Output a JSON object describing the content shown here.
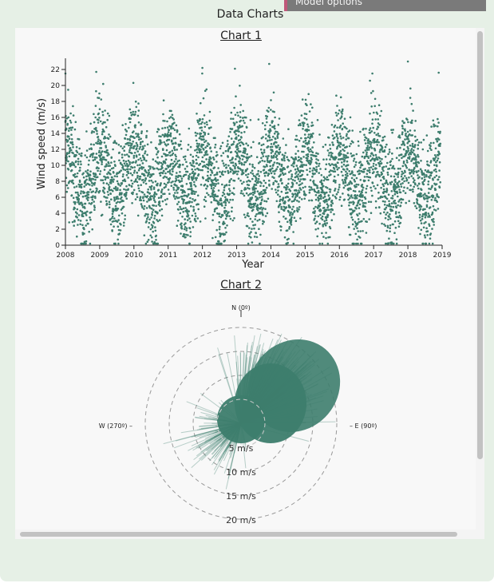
{
  "window": {
    "title": "Data Charts",
    "tab_label": "Model options"
  },
  "colors": {
    "point": "#3d7d6d",
    "panel": "#e6f0e6",
    "content": "#f8f8f8"
  },
  "chart_data": [
    {
      "type": "scatter",
      "title": "Chart 1",
      "xlabel": "Year",
      "ylabel": "Wind speed (m/s)",
      "xlim": [
        2008,
        2019
      ],
      "ylim": [
        0,
        23
      ],
      "x_ticks": [
        "2008",
        "2009",
        "2010",
        "2011",
        "2012",
        "2013",
        "2014",
        "2015",
        "2016",
        "2017",
        "2018",
        "2019"
      ],
      "y_ticks": [
        "0",
        "2",
        "4",
        "6",
        "8",
        "10",
        "12",
        "14",
        "16",
        "18",
        "20",
        "22"
      ],
      "grid": false,
      "series": [
        {
          "pattern": "daily wind speed observations, seasonal cycle with winter peaks",
          "mean": 9,
          "min": 0,
          "max": 23,
          "notable_peaks": [
            [
              2008.0,
              21.5
            ],
            [
              2008.9,
              21.7
            ],
            [
              2012.0,
              22.2
            ],
            [
              2012.95,
              22.1
            ],
            [
              2013.95,
              22.7
            ],
            [
              2018.0,
              23.0
            ],
            [
              2018.9,
              21.6
            ]
          ]
        }
      ]
    },
    {
      "type": "polar",
      "title": "Chart 2",
      "direction_labels": {
        "north": "N (0º)",
        "east": "– E (90º)",
        "west": "W (270º) –"
      },
      "radius_labels": [
        "5 m/s",
        "10 m/s",
        "15 m/s",
        "20 m/s"
      ],
      "radius_values": [
        5,
        10,
        15,
        20
      ],
      "description": "wind vectors, dominant direction south-west to north-east"
    }
  ]
}
